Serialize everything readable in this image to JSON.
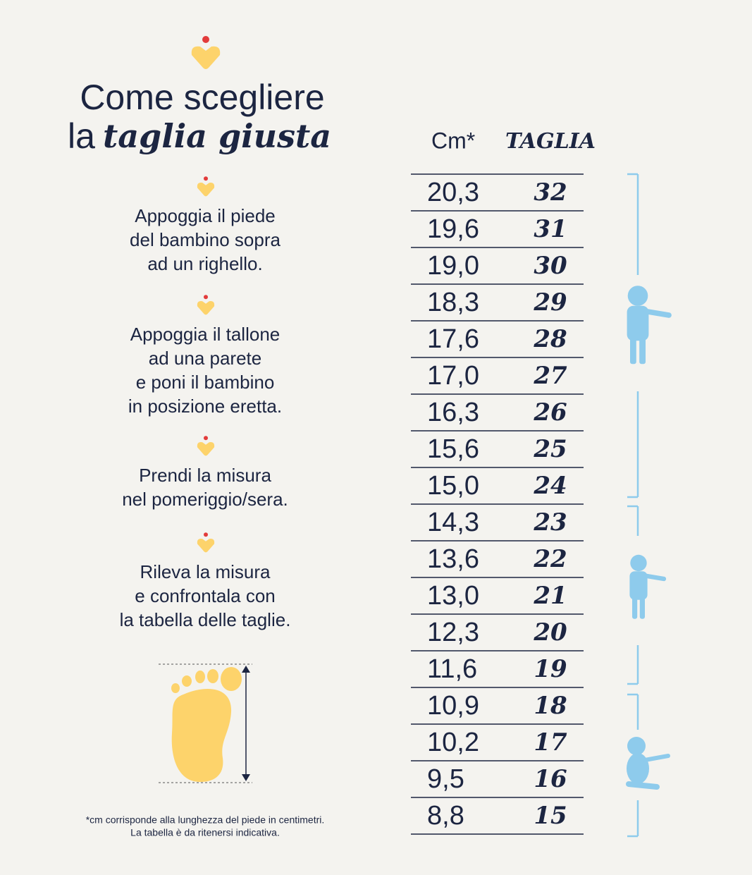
{
  "title": {
    "line1": "Come scegliere",
    "line2_prefix": "la",
    "line2_emphasis": "taglia giusta"
  },
  "steps": [
    {
      "lines": [
        "Appoggia il piede",
        "del bambino sopra",
        "ad un righello."
      ]
    },
    {
      "lines": [
        "Appoggia il tallone",
        "ad una parete",
        "e poni il bambino",
        "in posizione eretta."
      ]
    },
    {
      "lines": [
        "Prendi la misura",
        "nel pomeriggio/sera."
      ]
    },
    {
      "lines": [
        "Rileva la misura",
        "e confrontala con",
        "la tabella delle taglie."
      ]
    }
  ],
  "table": {
    "header": [
      "Cm*",
      "TAGLIA"
    ],
    "rows": [
      [
        "20,3",
        "32"
      ],
      [
        "19,6",
        "31"
      ],
      [
        "19,0",
        "30"
      ],
      [
        "18,3",
        "29"
      ],
      [
        "17,6",
        "28"
      ],
      [
        "17,0",
        "27"
      ],
      [
        "16,3",
        "26"
      ],
      [
        "15,6",
        "25"
      ],
      [
        "15,0",
        "24"
      ],
      [
        "14,3",
        "23"
      ],
      [
        "13,6",
        "22"
      ],
      [
        "13,0",
        "21"
      ],
      [
        "12,3",
        "20"
      ],
      [
        "11,6",
        "19"
      ],
      [
        "10,9",
        "18"
      ],
      [
        "10,2",
        "17"
      ],
      [
        "9,5",
        "16"
      ],
      [
        "8,8",
        "15"
      ]
    ]
  },
  "footnote": [
    "*cm corrisponde alla lunghezza del piede in centimetri.",
    "La tabella è da ritenersi indicativa."
  ]
}
